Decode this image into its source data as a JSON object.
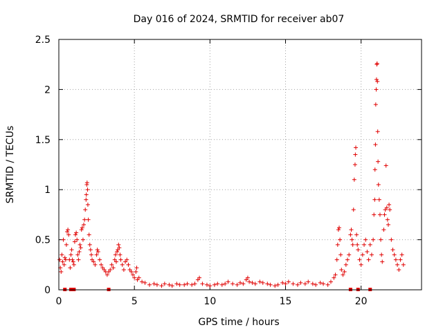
{
  "chart_data": {
    "type": "scatter",
    "title": "Day 016 of 2024, SRMTID for receiver ab07",
    "xlabel": "GPS time / hours",
    "ylabel": "SRMTID / TECUs",
    "xlim": [
      0,
      24
    ],
    "ylim": [
      0,
      2.5
    ],
    "grid": true,
    "marker": "+",
    "color": "#e00000",
    "x_ticks": [
      {
        "value": 0,
        "label": "0"
      },
      {
        "value": 5,
        "label": "5"
      },
      {
        "value": 10,
        "label": "10"
      },
      {
        "value": 15,
        "label": "15"
      },
      {
        "value": 20,
        "label": "20"
      }
    ],
    "y_ticks": [
      {
        "value": 0,
        "label": "0"
      },
      {
        "value": 0.5,
        "label": "0.5"
      },
      {
        "value": 1,
        "label": "1"
      },
      {
        "value": 1.5,
        "label": "1.5"
      },
      {
        "value": 2,
        "label": "2"
      },
      {
        "value": 2.5,
        "label": "2.5"
      }
    ],
    "series": [
      {
        "name": "SRMTID",
        "points": [
          [
            0.05,
            0.3
          ],
          [
            0.1,
            0.22
          ],
          [
            0.15,
            0.18
          ],
          [
            0.2,
            0.35
          ],
          [
            0.25,
            0.28
          ],
          [
            0.3,
            0.5
          ],
          [
            0.35,
            0.25
          ],
          [
            0.4,
            0.32
          ],
          [
            0.45,
            0.3
          ],
          [
            0.5,
            0.45
          ],
          [
            0.55,
            0.58
          ],
          [
            0.6,
            0.6
          ],
          [
            0.65,
            0.55
          ],
          [
            0.7,
            0.3
          ],
          [
            0.75,
            0.22
          ],
          [
            0.8,
            0.35
          ],
          [
            0.85,
            0.4
          ],
          [
            0.9,
            0.3
          ],
          [
            0.95,
            0.28
          ],
          [
            1.0,
            0.25
          ],
          [
            1.05,
            0.48
          ],
          [
            1.1,
            0.55
          ],
          [
            1.15,
            0.57
          ],
          [
            1.2,
            0.5
          ],
          [
            1.25,
            0.35
          ],
          [
            1.3,
            0.3
          ],
          [
            1.35,
            0.38
          ],
          [
            1.4,
            0.45
          ],
          [
            1.45,
            0.42
          ],
          [
            1.5,
            0.6
          ],
          [
            1.55,
            0.62
          ],
          [
            1.6,
            0.5
          ],
          [
            1.65,
            0.65
          ],
          [
            1.7,
            0.7
          ],
          [
            1.75,
            0.8
          ],
          [
            1.8,
            0.9
          ],
          [
            1.82,
            0.95
          ],
          [
            1.85,
            1.05
          ],
          [
            1.87,
            1.07
          ],
          [
            1.9,
            1.0
          ],
          [
            1.92,
            0.85
          ],
          [
            1.95,
            0.7
          ],
          [
            2.0,
            0.55
          ],
          [
            2.05,
            0.45
          ],
          [
            2.1,
            0.4
          ],
          [
            2.15,
            0.35
          ],
          [
            2.2,
            0.3
          ],
          [
            2.3,
            0.28
          ],
          [
            2.4,
            0.25
          ],
          [
            2.5,
            0.35
          ],
          [
            2.55,
            0.4
          ],
          [
            2.6,
            0.38
          ],
          [
            2.7,
            0.3
          ],
          [
            2.8,
            0.25
          ],
          [
            2.9,
            0.22
          ],
          [
            3.0,
            0.2
          ],
          [
            3.1,
            0.18
          ],
          [
            3.2,
            0.15
          ],
          [
            3.3,
            0.18
          ],
          [
            3.4,
            0.2
          ],
          [
            3.5,
            0.25
          ],
          [
            3.6,
            0.22
          ],
          [
            3.7,
            0.3
          ],
          [
            3.75,
            0.35
          ],
          [
            3.8,
            0.28
          ],
          [
            3.85,
            0.38
          ],
          [
            3.9,
            0.4
          ],
          [
            3.95,
            0.45
          ],
          [
            4.0,
            0.42
          ],
          [
            4.05,
            0.35
          ],
          [
            4.1,
            0.3
          ],
          [
            4.2,
            0.25
          ],
          [
            4.3,
            0.2
          ],
          [
            4.4,
            0.28
          ],
          [
            4.5,
            0.3
          ],
          [
            4.6,
            0.25
          ],
          [
            4.7,
            0.2
          ],
          [
            4.8,
            0.18
          ],
          [
            4.9,
            0.15
          ],
          [
            5.0,
            0.12
          ],
          [
            5.1,
            0.18
          ],
          [
            5.15,
            0.22
          ],
          [
            5.2,
            0.1
          ],
          [
            5.3,
            0.12
          ],
          [
            5.5,
            0.08
          ],
          [
            5.7,
            0.07
          ],
          [
            6.0,
            0.05
          ],
          [
            6.3,
            0.06
          ],
          [
            6.5,
            0.05
          ],
          [
            6.8,
            0.04
          ],
          [
            7.0,
            0.06
          ],
          [
            7.3,
            0.05
          ],
          [
            7.5,
            0.04
          ],
          [
            7.8,
            0.06
          ],
          [
            8.0,
            0.05
          ],
          [
            8.3,
            0.05
          ],
          [
            8.5,
            0.06
          ],
          [
            8.8,
            0.05
          ],
          [
            9.0,
            0.06
          ],
          [
            9.2,
            0.1
          ],
          [
            9.3,
            0.12
          ],
          [
            9.5,
            0.06
          ],
          [
            9.8,
            0.05
          ],
          [
            10.0,
            0.04
          ],
          [
            10.3,
            0.05
          ],
          [
            10.5,
            0.06
          ],
          [
            10.8,
            0.05
          ],
          [
            11.0,
            0.06
          ],
          [
            11.2,
            0.08
          ],
          [
            11.5,
            0.06
          ],
          [
            11.8,
            0.05
          ],
          [
            12.0,
            0.07
          ],
          [
            12.2,
            0.06
          ],
          [
            12.4,
            0.1
          ],
          [
            12.5,
            0.12
          ],
          [
            12.6,
            0.08
          ],
          [
            12.8,
            0.07
          ],
          [
            13.0,
            0.06
          ],
          [
            13.3,
            0.08
          ],
          [
            13.5,
            0.07
          ],
          [
            13.8,
            0.06
          ],
          [
            14.0,
            0.05
          ],
          [
            14.3,
            0.04
          ],
          [
            14.5,
            0.05
          ],
          [
            14.8,
            0.07
          ],
          [
            15.0,
            0.06
          ],
          [
            15.2,
            0.08
          ],
          [
            15.5,
            0.06
          ],
          [
            15.8,
            0.05
          ],
          [
            16.0,
            0.07
          ],
          [
            16.3,
            0.06
          ],
          [
            16.5,
            0.08
          ],
          [
            16.8,
            0.06
          ],
          [
            17.0,
            0.05
          ],
          [
            17.3,
            0.07
          ],
          [
            17.5,
            0.06
          ],
          [
            17.8,
            0.05
          ],
          [
            18.0,
            0.08
          ],
          [
            18.2,
            0.12
          ],
          [
            18.3,
            0.15
          ],
          [
            18.4,
            0.3
          ],
          [
            18.45,
            0.45
          ],
          [
            18.5,
            0.6
          ],
          [
            18.55,
            0.62
          ],
          [
            18.6,
            0.5
          ],
          [
            18.65,
            0.35
          ],
          [
            18.7,
            0.2
          ],
          [
            18.8,
            0.15
          ],
          [
            18.9,
            0.18
          ],
          [
            19.0,
            0.25
          ],
          [
            19.1,
            0.3
          ],
          [
            19.2,
            0.35
          ],
          [
            19.3,
            0.55
          ],
          [
            19.35,
            0.6
          ],
          [
            19.4,
            0.5
          ],
          [
            19.45,
            0.45
          ],
          [
            19.5,
            0.8
          ],
          [
            19.55,
            1.1
          ],
          [
            19.6,
            1.25
          ],
          [
            19.62,
            1.35
          ],
          [
            19.65,
            1.42
          ],
          [
            19.7,
            0.55
          ],
          [
            19.75,
            0.45
          ],
          [
            19.8,
            0.4
          ],
          [
            19.9,
            0.3
          ],
          [
            20.0,
            0.25
          ],
          [
            20.1,
            0.35
          ],
          [
            20.2,
            0.45
          ],
          [
            20.3,
            0.5
          ],
          [
            20.4,
            0.38
          ],
          [
            20.5,
            0.3
          ],
          [
            20.6,
            0.45
          ],
          [
            20.7,
            0.35
          ],
          [
            20.8,
            0.5
          ],
          [
            20.85,
            0.75
          ],
          [
            20.9,
            0.9
          ],
          [
            20.92,
            1.2
          ],
          [
            20.95,
            1.45
          ],
          [
            20.97,
            1.85
          ],
          [
            21.0,
            2.0
          ],
          [
            21.02,
            2.1
          ],
          [
            21.04,
            2.25
          ],
          [
            21.06,
            2.26
          ],
          [
            21.08,
            2.08
          ],
          [
            21.1,
            1.58
          ],
          [
            21.12,
            1.28
          ],
          [
            21.15,
            1.05
          ],
          [
            21.2,
            0.9
          ],
          [
            21.25,
            0.75
          ],
          [
            21.3,
            0.5
          ],
          [
            21.35,
            0.35
          ],
          [
            21.4,
            0.28
          ],
          [
            21.5,
            0.6
          ],
          [
            21.55,
            0.75
          ],
          [
            21.6,
            0.8
          ],
          [
            21.65,
            1.24
          ],
          [
            21.7,
            0.82
          ],
          [
            21.75,
            0.7
          ],
          [
            21.8,
            0.65
          ],
          [
            21.85,
            0.85
          ],
          [
            21.9,
            0.8
          ],
          [
            22.0,
            0.5
          ],
          [
            22.1,
            0.4
          ],
          [
            22.2,
            0.35
          ],
          [
            22.3,
            0.3
          ],
          [
            22.4,
            0.25
          ],
          [
            22.5,
            0.2
          ],
          [
            22.6,
            0.3
          ],
          [
            22.7,
            0.35
          ],
          [
            22.8,
            0.25
          ]
        ]
      }
    ],
    "zero_flags_x": [
      0.4,
      0.8,
      1.0,
      3.3,
      19.3,
      19.8,
      20.6
    ]
  }
}
